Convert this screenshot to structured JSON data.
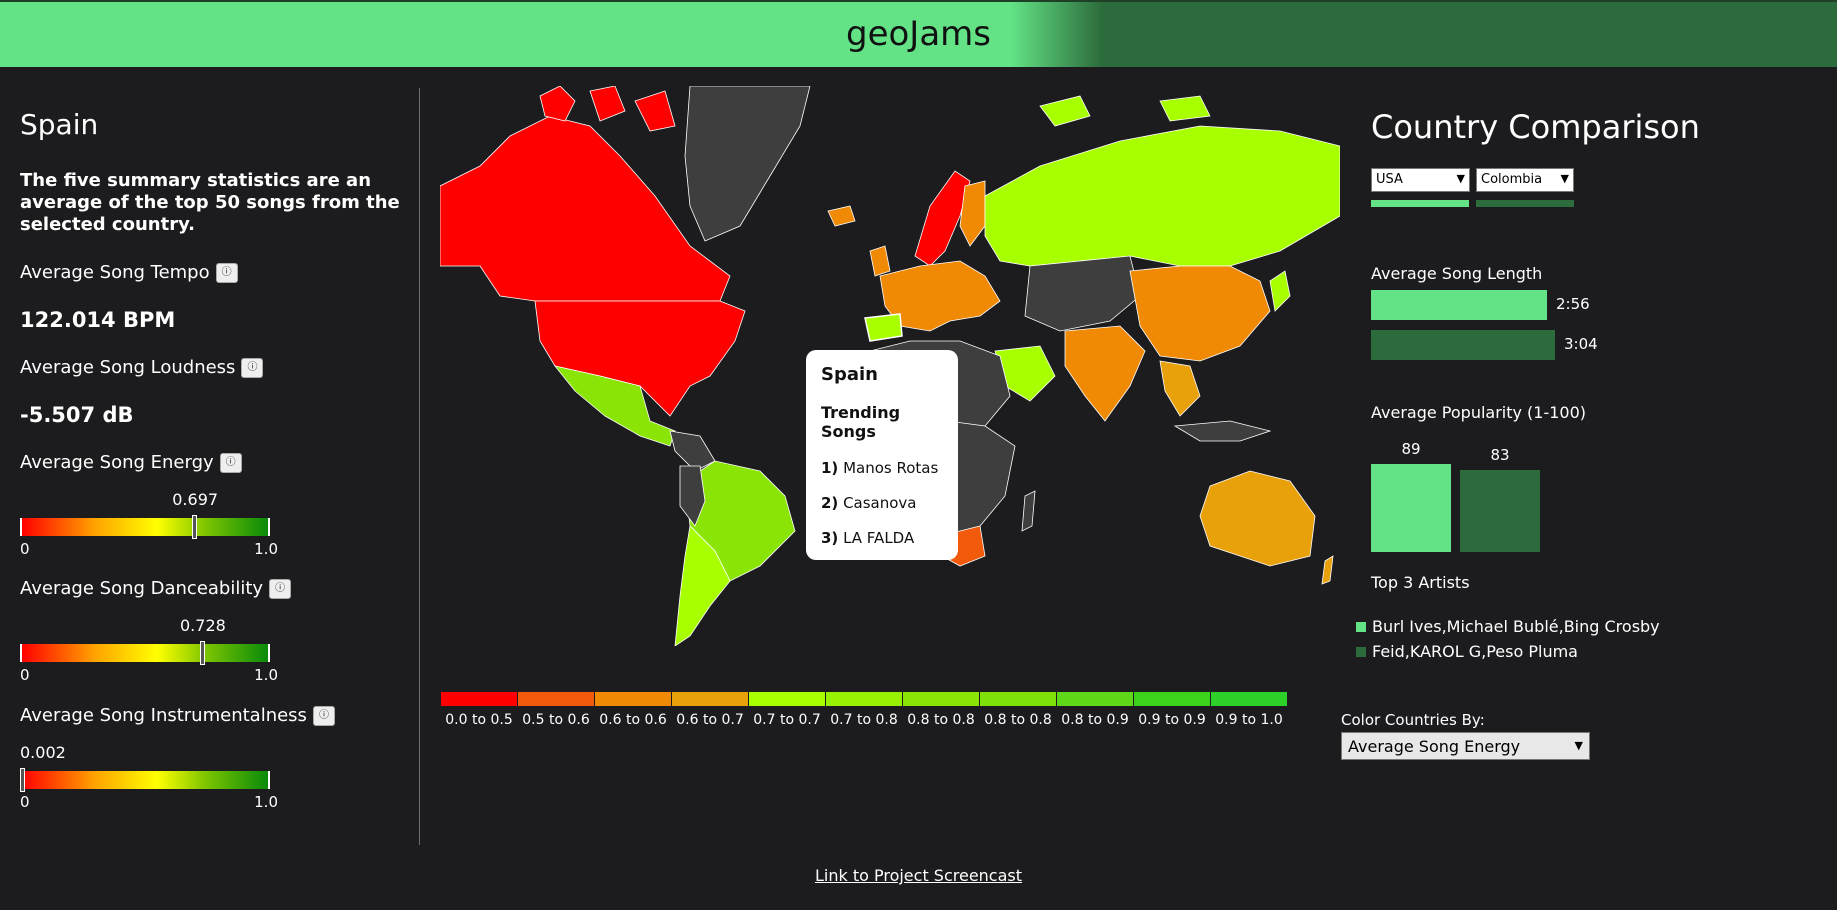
{
  "header": {
    "title": "geoJams"
  },
  "left": {
    "country": "Spain",
    "summary": "The five summary statistics are an average of the top 50 songs from the selected country.",
    "tempo": {
      "label": "Average Song Tempo",
      "value": "122.014 BPM"
    },
    "loudness": {
      "label": "Average Song Loudness",
      "value": "-5.507 dB"
    },
    "energy": {
      "label": "Average Song Energy",
      "value": "0.697",
      "level": 0.697,
      "min": "0",
      "max": "1.0"
    },
    "danceability": {
      "label": "Average Song Danceability",
      "value": "0.728",
      "level": 0.728,
      "min": "0",
      "max": "1.0"
    },
    "instrumentalness": {
      "label": "Average Song Instrumentalness",
      "value": "0.002",
      "level": 0.002,
      "min": "0",
      "max": "1.0"
    },
    "info_icon": "info-icon"
  },
  "tooltip": {
    "country": "Spain",
    "heading": "Trending Songs",
    "songs": [
      {
        "rank": "1)",
        "title": "Manos Rotas"
      },
      {
        "rank": "2)",
        "title": "Casanova"
      },
      {
        "rank": "3)",
        "title": "LA FALDA"
      }
    ]
  },
  "legend": [
    {
      "label": "0.0 to 0.5",
      "color": "#ff0000"
    },
    {
      "label": "0.5 to 0.6",
      "color": "#f05a0a"
    },
    {
      "label": "0.6 to 0.6",
      "color": "#f08a05"
    },
    {
      "label": "0.6 to 0.7",
      "color": "#e8a10a"
    },
    {
      "label": "0.7 to 0.7",
      "color": "#a8ff00"
    },
    {
      "label": "0.7 to 0.8",
      "color": "#98f002"
    },
    {
      "label": "0.8 to 0.8",
      "color": "#8ae405"
    },
    {
      "label": "0.8 to 0.8",
      "color": "#7fe00a"
    },
    {
      "label": "0.8 to 0.9",
      "color": "#5fd81a"
    },
    {
      "label": "0.9 to 0.9",
      "color": "#3cd21c"
    },
    {
      "label": "0.9 to 1.0",
      "color": "#2ed12a"
    }
  ],
  "comparison": {
    "title": "Country Comparison",
    "country_a": "USA",
    "country_b": "Colombia",
    "color_a": "#63e386",
    "color_b": "#2c6b3b",
    "song_length_label": "Average Song Length",
    "length_a": "2:56",
    "length_b": "3:04",
    "popularity_label": "Average Popularity (1-100)",
    "popularity_a": "89",
    "popularity_b": "83",
    "top_artists_label": "Top 3 Artists",
    "artists_a": "Burl Ives,Michael Bublé,Bing Crosby",
    "artists_b": "Feid,KAROL G,Peso Pluma",
    "color_by_label": "Color Countries By:",
    "color_by_value": "Average Song Energy"
  },
  "footer": {
    "link": "Link to Project Screencast"
  }
}
